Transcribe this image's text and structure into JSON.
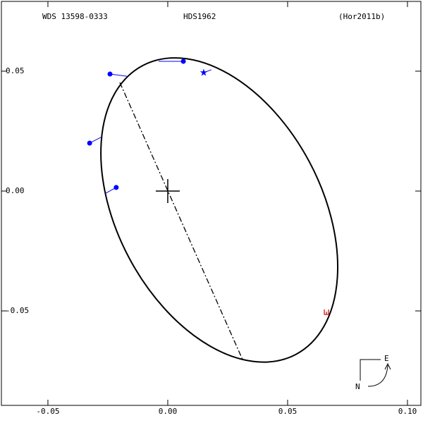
{
  "chart_data": {
    "type": "orbit",
    "header": [
      "WDS 13598-0333",
      "HDS1962",
      "(Hor2011b)"
    ],
    "xlim": [
      -0.0694,
      0.1056
    ],
    "ylim": [
      -0.0894,
      0.0791
    ],
    "xticks": [
      -0.05,
      {
        "value": 0,
        "label": "0.00"
      },
      0.05,
      {
        "value": 0.1,
        "label": "0.10"
      }
    ],
    "yticks": [
      0.05,
      {
        "value": 0,
        "label": "0.00"
      },
      -0.05
    ],
    "orbit": {
      "center": [
        0.0215,
        -0.0079
      ],
      "semi_major": 0.0682,
      "semi_minor": 0.0426,
      "angle": -62,
      "color": "#000000"
    },
    "node_line": {
      "x": [
        -0.02,
        0.0312
      ],
      "y": [
        0.0453,
        -0.0703
      ]
    },
    "observations": {
      "color": "#0000ff",
      "markers": [
        "dot",
        "dot",
        "dot",
        "dot",
        "star"
      ],
      "x": [
        -0.0241,
        -0.0326,
        -0.0215,
        0.0065,
        0.015
      ],
      "y": [
        0.0488,
        0.02,
        0.0015,
        0.0541,
        0.0494
      ],
      "orbit_x": [
        -0.0171,
        -0.0279,
        -0.0259,
        -0.0038,
        0.0182
      ],
      "orbit_y": [
        0.0479,
        0.0224,
        -0.0009,
        0.0541,
        0.0506
      ]
    },
    "epoch_mark": {
      "x": 0.0662,
      "y": -0.0506,
      "color": "#cc0000"
    },
    "compass": {
      "east": "E",
      "north": "N"
    }
  }
}
